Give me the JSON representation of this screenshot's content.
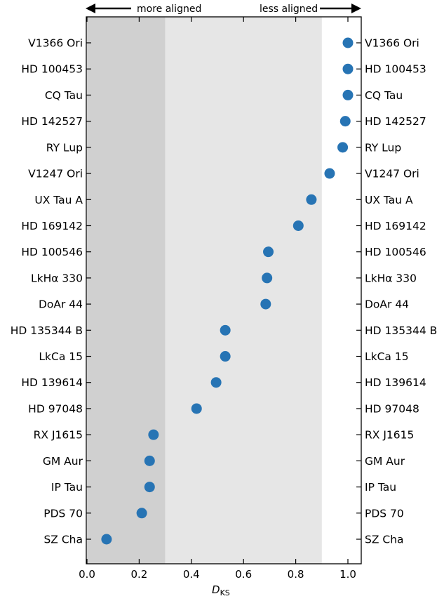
{
  "chart_data": {
    "type": "scatter",
    "xlabel": "D",
    "xlabel_sub": "KS",
    "xlim": [
      0.0,
      1.05
    ],
    "xticks": [
      "0.0",
      "0.2",
      "0.4",
      "0.6",
      "0.8",
      "1.0"
    ],
    "xtick_values": [
      0.0,
      0.2,
      0.4,
      0.6,
      0.8,
      1.0
    ],
    "annotations": {
      "left": "more aligned",
      "right": "less aligned"
    },
    "regions": [
      {
        "from": 0.0,
        "to": 0.3,
        "color": "#d0d0d0"
      },
      {
        "from": 0.3,
        "to": 0.9,
        "color": "#e6e6e6"
      }
    ],
    "marker_color": "#2774b4",
    "categories": [
      "V1366 Ori",
      "HD 100453",
      "CQ Tau",
      "HD 142527",
      "RY Lup",
      "V1247 Ori",
      "UX Tau A",
      "HD 169142",
      "HD 100546",
      "LkHα 330",
      "DoAr 44",
      "HD 135344 B",
      "LkCa 15",
      "HD 139614",
      "HD 97048",
      "RX J1615",
      "GM Aur",
      "IP Tau",
      "PDS 70",
      "SZ Cha"
    ],
    "values": [
      1.0,
      1.0,
      1.0,
      0.99,
      0.98,
      0.93,
      0.86,
      0.81,
      0.695,
      0.69,
      0.685,
      0.53,
      0.53,
      0.495,
      0.42,
      0.255,
      0.24,
      0.24,
      0.21,
      0.075
    ]
  }
}
